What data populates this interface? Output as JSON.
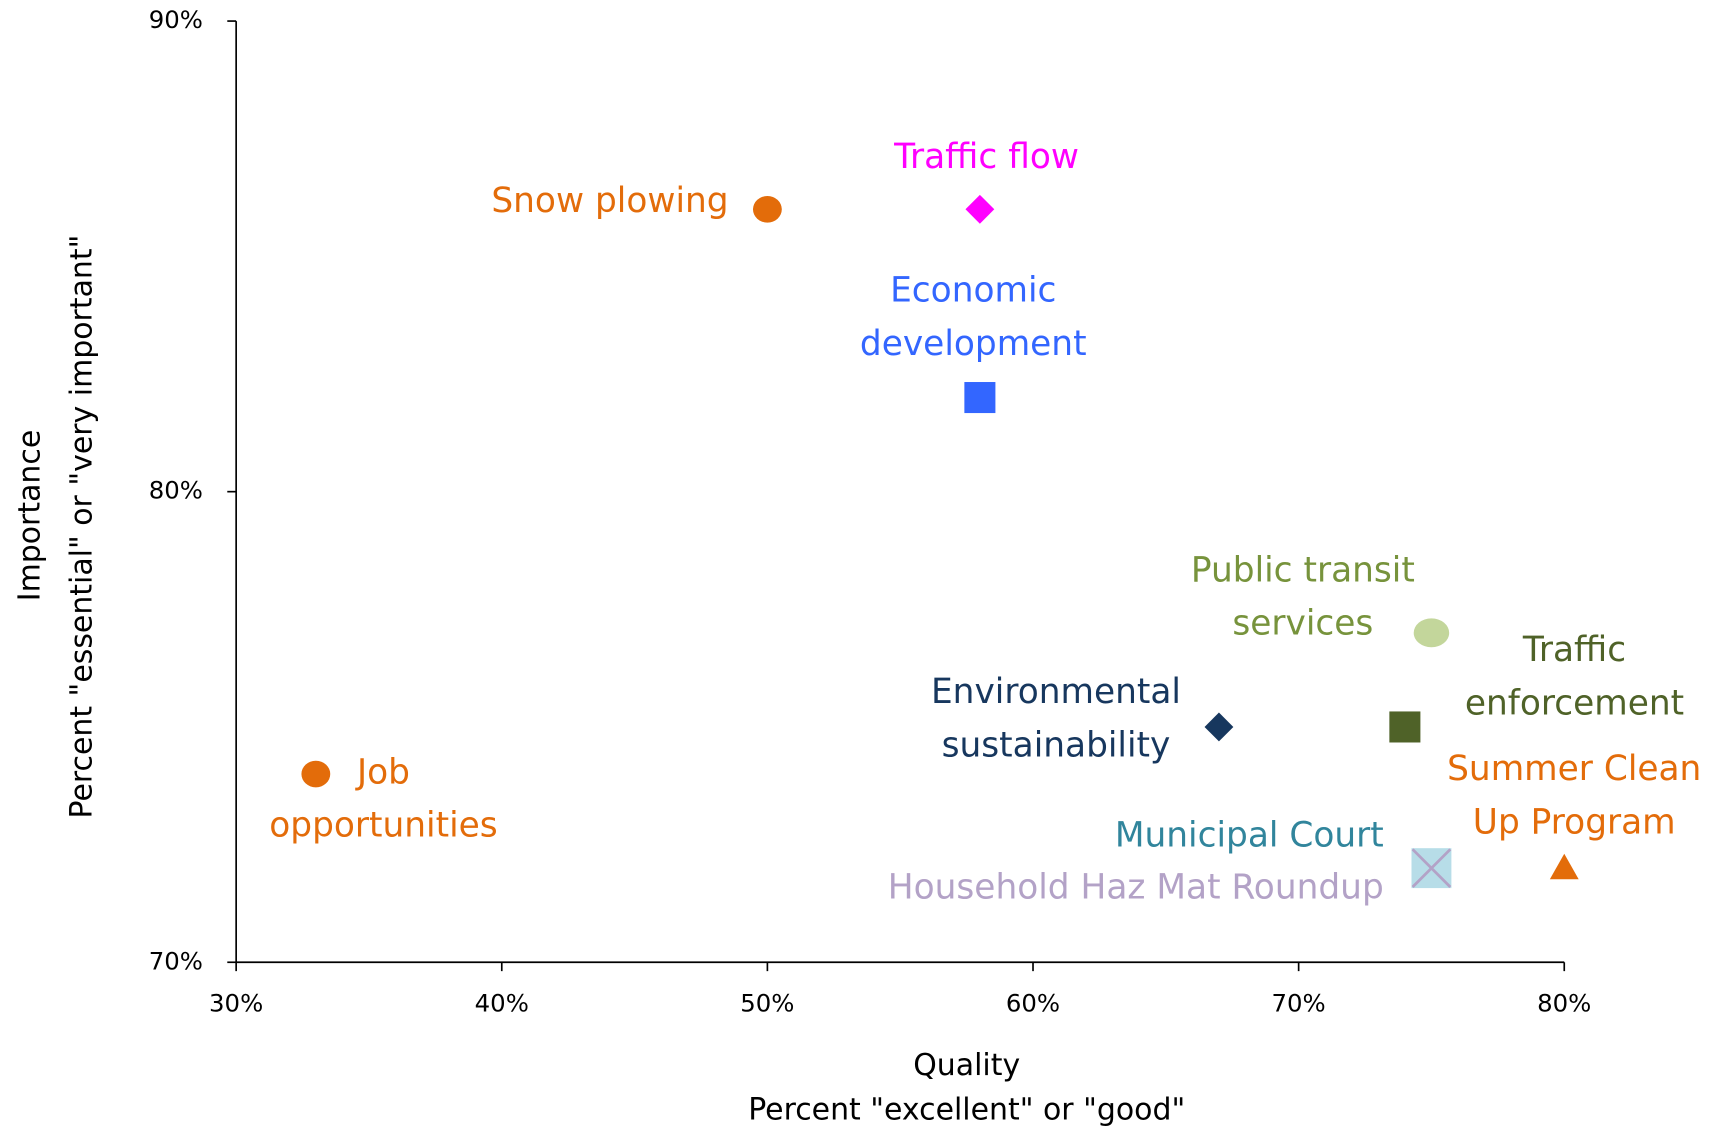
{
  "chart_data": {
    "type": "scatter",
    "x_label": [
      "Quality",
      "Percent \"excellent\" or \"good\""
    ],
    "y_label": [
      "Importance",
      "Percent \"essential\" or \"very important\""
    ],
    "xlim": [
      30,
      80
    ],
    "xticks": [
      {
        "value": 30,
        "label": "30%"
      },
      {
        "value": 40,
        "label": "40%"
      },
      {
        "value": 50,
        "label": "50%"
      },
      {
        "value": 60,
        "label": "60%"
      },
      {
        "value": 70,
        "label": "70%"
      },
      {
        "value": 80,
        "label": "80%"
      }
    ],
    "ylim": [
      70,
      90
    ],
    "yticks": [
      {
        "value": 70,
        "label": "70%"
      },
      {
        "value": 80,
        "label": "80%"
      },
      {
        "value": 90,
        "label": "90%"
      }
    ],
    "points": [
      {
        "label": [
          "Snow plowing"
        ],
        "x": 50,
        "y": 86,
        "marker": "circle",
        "color": "#e36c0a",
        "label_color": "#e36c0a"
      },
      {
        "label": [
          "Traffic flow"
        ],
        "x": 58,
        "y": 86,
        "marker": "diamond",
        "color": "#ff00ff",
        "label_color": "#ff00ff"
      },
      {
        "label": [
          "Economic",
          "development"
        ],
        "x": 58,
        "y": 82,
        "marker": "square",
        "color": "#3366ff",
        "label_color": "#3366ff"
      },
      {
        "label": [
          "Public transit",
          "services"
        ],
        "x": 75,
        "y": 77,
        "marker": "circle",
        "color": "#c3d69b",
        "label_color": "#77933c"
      },
      {
        "label": [
          "Traffic",
          "enforcement"
        ],
        "x": 74,
        "y": 75,
        "marker": "square",
        "color": "#4f6228",
        "label_color": "#4f6228"
      },
      {
        "label": [
          "Environmental",
          "sustainability"
        ],
        "x": 67,
        "y": 75,
        "marker": "diamond",
        "color": "#17375e",
        "label_color": "#17375e"
      },
      {
        "label": [
          "Job",
          "opportunities"
        ],
        "x": 33,
        "y": 74,
        "marker": "circle",
        "color": "#e36c0a",
        "label_color": "#e36c0a"
      },
      {
        "label": [
          "Summer Clean",
          "Up Program"
        ],
        "x": 80,
        "y": 72,
        "marker": "triangle",
        "color": "#e36c0a",
        "label_color": "#e36c0a"
      },
      {
        "label": [
          "Municipal Court"
        ],
        "x": 75,
        "y": 72,
        "marker": "square",
        "color": "#b7dde8",
        "label_color": "#31859c"
      },
      {
        "label": [
          "Household Haz Mat Roundup"
        ],
        "x": 75,
        "y": 72,
        "marker": "x",
        "color": "#b3a2c7",
        "label_color": "#b3a2c7"
      }
    ]
  }
}
